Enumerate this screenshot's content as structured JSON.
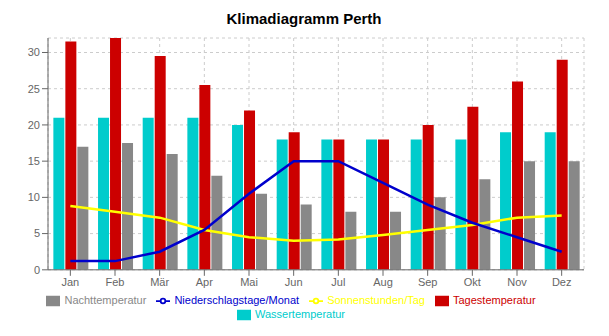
{
  "chart_data": {
    "type": "bar",
    "title": "Klimadiagramm Perth",
    "categories": [
      "Jan",
      "Feb",
      "Mär",
      "Apr",
      "Mai",
      "Jun",
      "Jul",
      "Aug",
      "Sep",
      "Okt",
      "Nov",
      "Dez"
    ],
    "series": [
      {
        "name": "Wassertemperatur",
        "type": "bar",
        "color": "#00CCCC",
        "values": [
          21,
          21,
          21,
          21,
          20,
          18,
          18,
          18,
          18,
          18,
          19,
          19
        ]
      },
      {
        "name": "Tagestemperatur",
        "type": "bar",
        "color": "#CC0000",
        "values": [
          31.5,
          32,
          29.5,
          25.5,
          22,
          19,
          18,
          18,
          20,
          22.5,
          26,
          29
        ]
      },
      {
        "name": "Nachttemperatur",
        "type": "bar",
        "color": "#888888",
        "values": [
          17,
          17.5,
          16,
          13,
          10.5,
          9,
          8,
          8,
          10,
          12.5,
          15,
          15
        ]
      },
      {
        "name": "Sonnenstunden/Tag",
        "type": "line",
        "color": "#FFFF00",
        "values": [
          8.8,
          8.0,
          7.2,
          5.5,
          4.5,
          4.0,
          4.2,
          4.8,
          5.5,
          6.2,
          7.2,
          7.5
        ]
      },
      {
        "name": "Niederschlagstage/Monat",
        "type": "line",
        "color": "#0000CC",
        "values": [
          1.2,
          1.2,
          2.5,
          5.5,
          10.5,
          15,
          15,
          12,
          9,
          6.5,
          4.5,
          2.5
        ]
      }
    ],
    "ylim": [
      0,
      32
    ],
    "yticks": [
      0,
      5,
      10,
      15,
      20,
      25,
      30
    ],
    "grid": true,
    "legend": "bottom"
  }
}
